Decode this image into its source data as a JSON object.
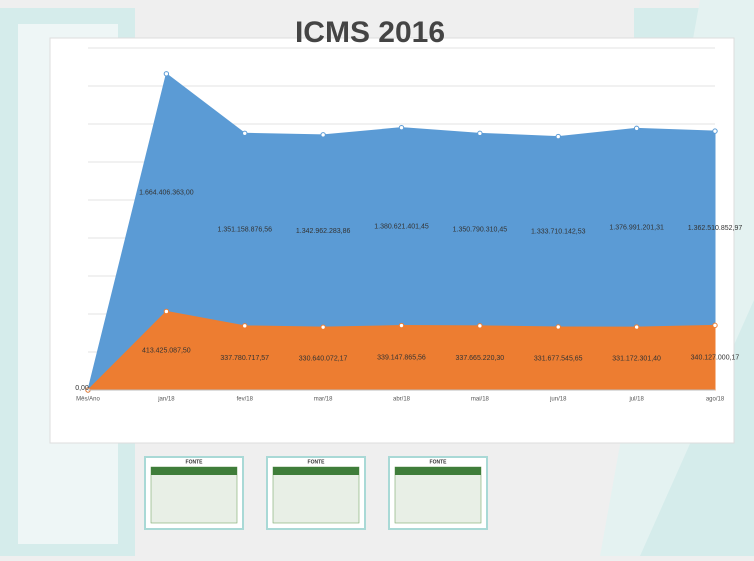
{
  "chart_data": {
    "type": "area",
    "title": "ICMS 2016",
    "categories": [
      "Mês/Ano",
      "jan/18",
      "fev/18",
      "mar/18",
      "abr/18",
      "mai/18",
      "jun/18",
      "jul/18",
      "ago/18"
    ],
    "series": [
      {
        "color": "#5b9bd5",
        "values": [
          0,
          1664406363.0,
          1351158876.56,
          1342962283.86,
          1380621401.45,
          1350790310.45,
          1333710142.53,
          1376991201.31,
          1362510852.97
        ],
        "value_labels": [
          null,
          "1.664.406.363,00",
          "1.351.158.876,56",
          "1.342.962.283,86",
          "1.380.621.401,45",
          "1.350.790.310,45",
          "1.333.710.142,53",
          "1.376.991.201,31",
          "1.362.510.852,97"
        ]
      },
      {
        "color": "#ed7d31",
        "values": [
          0,
          413425087.5,
          337780717.57,
          330640072.17,
          339147865.56,
          337665220.3,
          331677545.65,
          331172301.4,
          340127000.17
        ],
        "value_labels": [
          "0,00",
          "413.425.087,50",
          "337.780.717,57",
          "330.640.072,17",
          "339.147.865,56",
          "337.665.220,30",
          "331.677.545,65",
          "331.172.301,40",
          "340.127.000,17"
        ]
      }
    ],
    "ylim": [
      0,
      1800000000
    ],
    "yticks": [
      0,
      200000000,
      400000000,
      600000000,
      800000000,
      1000000000,
      1200000000,
      1400000000,
      1600000000,
      1800000000
    ],
    "grid": true
  },
  "thumbnails": [
    "FONTE",
    "FONTE",
    "FONTE"
  ]
}
